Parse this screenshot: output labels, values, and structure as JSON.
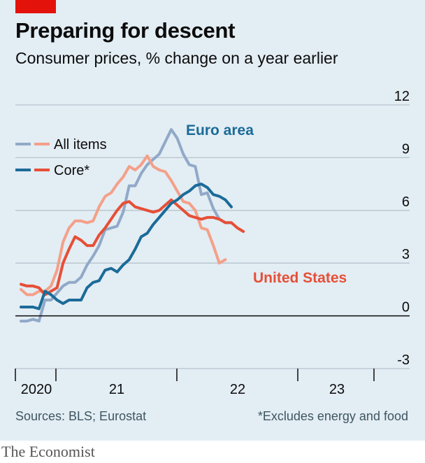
{
  "header": {
    "title": "Preparing for descent",
    "subtitle": "Consumer prices, % change on a year earlier"
  },
  "footer": {
    "source": "Sources: BLS; Eurostat",
    "note": "*Excludes energy and food",
    "brand": "The Economist"
  },
  "colors": {
    "background": "#e3edf4",
    "brand_red": "#e3120b",
    "euro_all": "#91a9c8",
    "euro_core": "#1b6b98",
    "us_all": "#f4a089",
    "us_core": "#e64f37",
    "euro_label": "#1b6b98",
    "us_label": "#e64f37",
    "grid": "#b7c4cd",
    "zero": "#0c0c0c"
  },
  "chart_data": {
    "type": "line",
    "x_unit": "months since January 2020",
    "x": [
      0,
      1,
      2,
      3,
      4,
      5,
      6,
      7,
      8,
      9,
      10,
      11,
      12,
      13,
      14,
      15,
      16,
      17,
      18,
      19,
      20,
      21,
      22,
      23,
      24,
      25,
      26,
      27,
      28,
      29,
      30,
      31,
      32,
      33,
      34,
      35,
      36,
      37,
      38,
      39,
      40,
      41,
      42
    ],
    "x_tick_labels": [
      "2020",
      "21",
      "22",
      "23"
    ],
    "ylim": [
      -3,
      12
    ],
    "y_ticks": [
      -3,
      0,
      3,
      6,
      9,
      12
    ],
    "legend": [
      {
        "label": "All items",
        "swatches": [
          "euro_all",
          "us_all"
        ]
      },
      {
        "label": "Core*",
        "swatches": [
          "euro_core",
          "us_core"
        ]
      }
    ],
    "annotations": [
      {
        "text": "Euro area",
        "color_key": "euro_label"
      },
      {
        "text": "United States",
        "color_key": "us_label"
      }
    ],
    "series": [
      {
        "color_key": "euro_all",
        "values": [
          -0.3,
          -0.3,
          -0.2,
          -0.3,
          0.9,
          0.9,
          1.3,
          1.7,
          1.9,
          1.9,
          2.2,
          2.9,
          3.4,
          4.0,
          4.9,
          5.0,
          5.1,
          5.9,
          7.4,
          7.4,
          8.1,
          8.6,
          8.9,
          9.2,
          9.9,
          10.6,
          10.1,
          9.2,
          8.6,
          8.5,
          6.9,
          7.0,
          6.1,
          5.5,
          5.3,
          5.3,
          null,
          null,
          null,
          null,
          null,
          null,
          null
        ]
      },
      {
        "color_key": "us_all",
        "values": [
          1.5,
          1.2,
          1.2,
          1.4,
          1.4,
          1.7,
          2.6,
          4.2,
          5.0,
          5.4,
          5.4,
          5.3,
          5.4,
          6.2,
          6.8,
          7.0,
          7.5,
          7.9,
          8.5,
          8.3,
          8.6,
          9.1,
          8.5,
          8.3,
          8.2,
          7.7,
          7.1,
          6.5,
          6.4,
          6.0,
          5.0,
          4.9,
          4.0,
          3.0,
          3.2,
          null,
          null,
          null,
          null,
          null,
          null,
          null,
          null
        ]
      },
      {
        "color_key": "euro_core",
        "values": [
          0.5,
          0.5,
          0.5,
          0.4,
          1.4,
          1.2,
          0.9,
          0.7,
          0.9,
          0.9,
          0.9,
          1.6,
          1.9,
          2.0,
          2.6,
          2.7,
          2.5,
          2.9,
          3.2,
          3.8,
          4.5,
          4.7,
          5.2,
          5.6,
          6.0,
          6.4,
          6.6,
          6.9,
          7.1,
          7.4,
          7.5,
          7.3,
          6.9,
          6.8,
          6.6,
          6.2,
          null,
          null,
          null,
          null,
          null,
          null,
          null
        ]
      },
      {
        "color_key": "us_core",
        "values": [
          1.8,
          1.7,
          1.7,
          1.6,
          1.2,
          1.4,
          1.6,
          3.0,
          3.8,
          4.5,
          4.3,
          4.0,
          4.0,
          4.6,
          5.0,
          5.5,
          6.0,
          6.4,
          6.5,
          6.2,
          6.1,
          6.0,
          5.9,
          6.0,
          6.3,
          6.6,
          6.3,
          6.0,
          5.7,
          5.6,
          5.5,
          5.6,
          5.6,
          5.5,
          5.3,
          5.3,
          5.0,
          4.8,
          null,
          null,
          null,
          null,
          null
        ]
      }
    ]
  }
}
